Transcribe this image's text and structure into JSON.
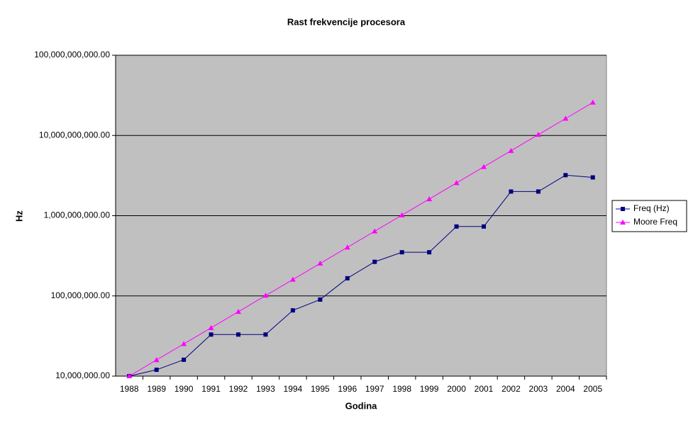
{
  "chart_data": {
    "type": "line",
    "title": "Rast frekvencije procesora",
    "x_label": "Godina",
    "y_label": "Hz",
    "categories": [
      "1988",
      "1989",
      "1990",
      "1991",
      "1992",
      "1993",
      "1994",
      "1995",
      "1996",
      "1997",
      "1998",
      "1999",
      "2000",
      "2001",
      "2002",
      "2003",
      "2004",
      "2005"
    ],
    "series": [
      {
        "name": "Freq (Hz)",
        "color": "#000080",
        "marker": "square",
        "values": [
          10000000,
          12000000,
          16000000,
          33000000,
          33000000,
          33000000,
          66000000,
          90000000,
          166000000,
          266000000,
          350000000,
          350000000,
          733000000,
          733000000,
          2000000000,
          2000000000,
          3200000000,
          3000000000
        ]
      },
      {
        "name": "Moore Freq",
        "color": "#ff00ff",
        "marker": "triangle",
        "values": [
          10000000,
          15900000,
          25200000,
          40000000,
          63500000,
          101000000,
          160000000,
          254000000,
          403000000,
          640000000,
          1016000000,
          1610000000,
          2560000000,
          4060000000,
          6450000000,
          10240000000,
          16250000000,
          25800000000
        ]
      }
    ],
    "log_scale": true,
    "ylim": [
      10000000,
      100000000000
    ],
    "yticks": [
      {
        "value": 10000000,
        "label": "10,000,000.00"
      },
      {
        "value": 100000000,
        "label": "100,000,000.00"
      },
      {
        "value": 1000000000,
        "label": "1,000,000,000.00"
      },
      {
        "value": 10000000000,
        "label": "10,000,000,000.00"
      },
      {
        "value": 100000000000,
        "label": "100,000,000,000.00"
      }
    ],
    "grid": true,
    "legend": "right",
    "plot_background": "#c0c0c0"
  }
}
